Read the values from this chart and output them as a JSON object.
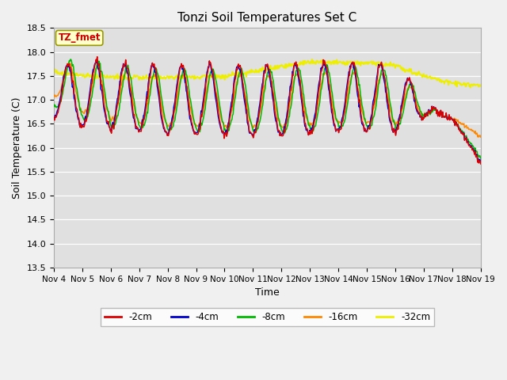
{
  "title": "Tonzi Soil Temperatures Set C",
  "xlabel": "Time",
  "ylabel": "Soil Temperature (C)",
  "ylim": [
    13.5,
    18.5
  ],
  "yticks": [
    13.5,
    14.0,
    14.5,
    15.0,
    15.5,
    16.0,
    16.5,
    17.0,
    17.5,
    18.0,
    18.5
  ],
  "xtick_labels": [
    "Nov 4",
    "Nov 5",
    "Nov 6",
    "Nov 7",
    "Nov 8",
    "Nov 9",
    "Nov 10",
    "Nov 11",
    "Nov 12",
    "Nov 13",
    "Nov 14",
    "Nov 15",
    "Nov 16",
    "Nov 17",
    "Nov 18",
    "Nov 19"
  ],
  "line_colors": {
    "-2cm": "#dd0000",
    "-4cm": "#0000cc",
    "-8cm": "#00bb00",
    "-16cm": "#ff8800",
    "-32cm": "#eeee00"
  },
  "legend_label": "TZ_fmet",
  "plot_bg": "#e0e0e0",
  "fig_bg": "#f0f0f0",
  "figsize": [
    6.4,
    4.8
  ],
  "dpi": 100
}
